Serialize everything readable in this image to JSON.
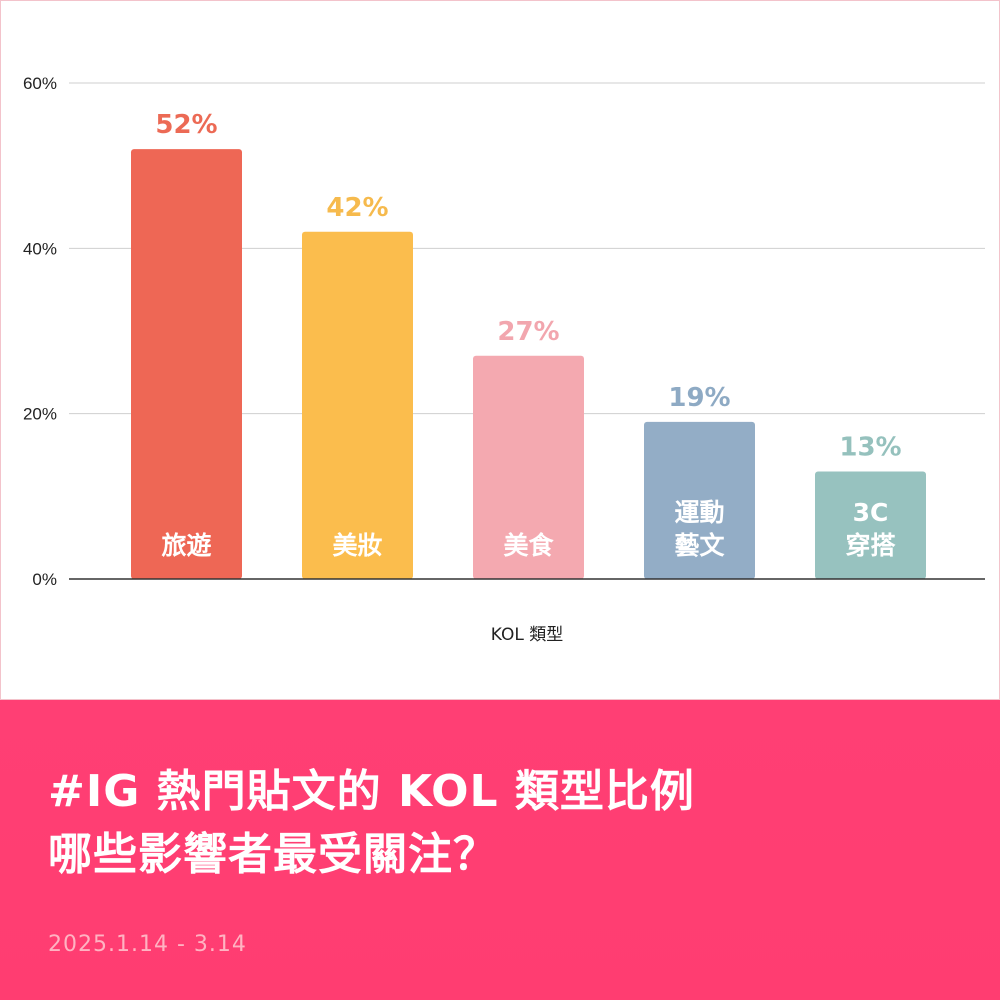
{
  "chart_data": {
    "type": "bar",
    "categories": [
      "旅遊",
      "美妝",
      "美食",
      "運動\n藝文",
      "3C\n穿搭"
    ],
    "values": [
      52,
      42,
      27,
      19,
      13
    ],
    "value_labels": [
      "52%",
      "42%",
      "27%",
      "19%",
      "13%"
    ],
    "colors": [
      "#ee6755",
      "#fbbd4d",
      "#f4a9b0",
      "#93adc6",
      "#97c2bf"
    ],
    "label_colors": [
      "#ec6a55",
      "#f6ba4d",
      "#f2a6ae",
      "#8eaac4",
      "#95c1bd"
    ],
    "xlabel": "KOL 類型",
    "ylabel": "",
    "ylim": [
      0,
      60
    ],
    "yticks": [
      0,
      20,
      40,
      60
    ],
    "ytick_labels": [
      "0%",
      "20%",
      "40%",
      "60%"
    ],
    "grid": true
  },
  "headline": {
    "line1": "#IG 熱門貼文的 KOL 類型比例",
    "line2": "哪些影響者最受關注？"
  },
  "date_range": "2025.1.14 - 3.14"
}
